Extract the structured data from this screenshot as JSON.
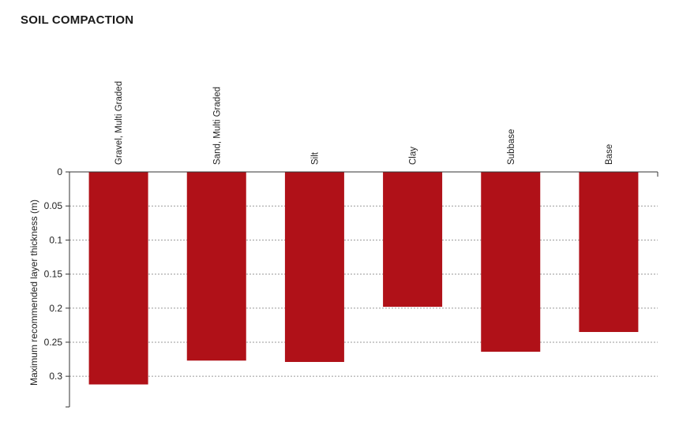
{
  "title": "SOIL COMPACTION",
  "chart_data": {
    "type": "bar",
    "orientation": "vertical",
    "y_axis_inverted": true,
    "categories": [
      "Gravel, Multi Graded",
      "Sand, Multi Graded",
      "Silt",
      "Clay",
      "Subbase",
      "Base"
    ],
    "values": [
      0.312,
      0.277,
      0.279,
      0.198,
      0.264,
      0.235
    ],
    "ylabel": "Maximum recommended layer thickness (m)",
    "xlabel": "",
    "ylim": [
      0,
      0.345
    ],
    "yticks": [
      "0",
      "0.05",
      "0.1",
      "0.15",
      "0.2",
      "0.25",
      "0.3"
    ],
    "grid": true,
    "category_label_position": "top",
    "color": "#b01118"
  }
}
